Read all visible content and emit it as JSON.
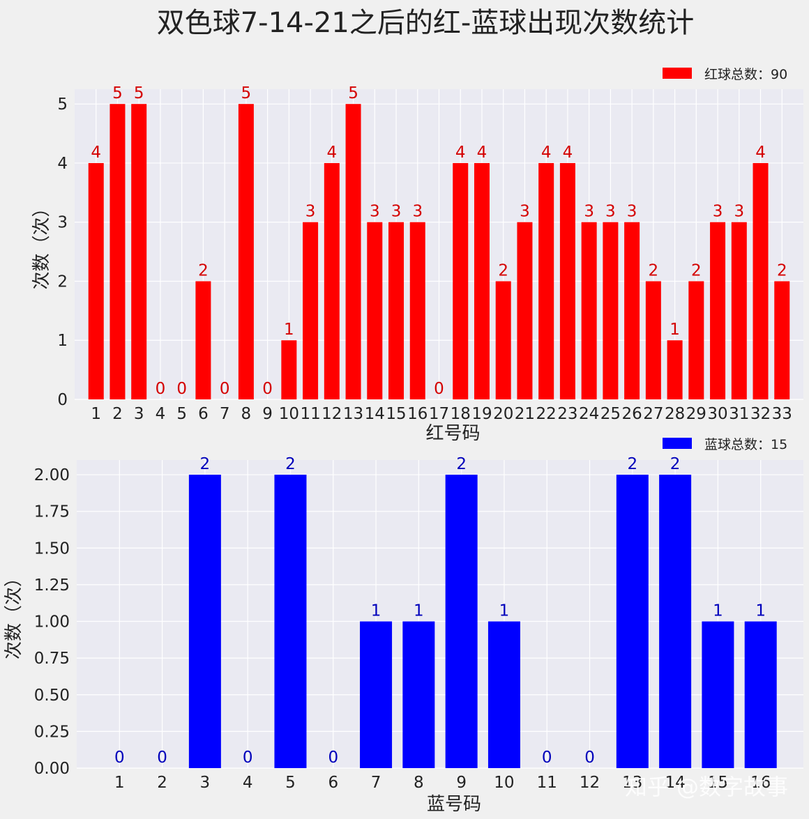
{
  "title": "双色球7-14-21之后的红-蓝球出现次数统计",
  "watermark": "知乎 @数字故事",
  "chart_data": [
    {
      "type": "bar",
      "name": "red",
      "xlabel": "红号码",
      "ylabel": "次数（次）",
      "legend": "红球总数：90",
      "legend_position": "top-right",
      "grid": true,
      "color": "#ff0000",
      "label_color": "#d40000",
      "ylim": [
        0,
        5.25
      ],
      "yticks": [
        0,
        1,
        2,
        3,
        4,
        5
      ],
      "ytick_labels": [
        "0",
        "1",
        "2",
        "3",
        "4",
        "5"
      ],
      "categories": [
        "1",
        "2",
        "3",
        "4",
        "5",
        "6",
        "7",
        "8",
        "9",
        "10",
        "11",
        "12",
        "13",
        "14",
        "15",
        "16",
        "17",
        "18",
        "19",
        "20",
        "21",
        "22",
        "23",
        "24",
        "25",
        "26",
        "27",
        "28",
        "29",
        "30",
        "31",
        "32",
        "33"
      ],
      "values": [
        4,
        5,
        5,
        0,
        0,
        2,
        0,
        5,
        0,
        1,
        3,
        4,
        5,
        3,
        3,
        3,
        0,
        4,
        4,
        2,
        3,
        4,
        4,
        3,
        3,
        3,
        2,
        1,
        2,
        3,
        3,
        4,
        2
      ],
      "data_labels": [
        "4",
        "5",
        "5",
        "0",
        "0",
        "2",
        "0",
        "5",
        "0",
        "1",
        "3",
        "4",
        "5",
        "3",
        "3",
        "3",
        "0",
        "4",
        "4",
        "2",
        "3",
        "4",
        "4",
        "3",
        "3",
        "3",
        "2",
        "1",
        "2",
        "3",
        "3",
        "4",
        "2"
      ]
    },
    {
      "type": "bar",
      "name": "blue",
      "xlabel": "蓝号码",
      "ylabel": "次数（次）",
      "legend": "蓝球总数：15",
      "legend_position": "top-right",
      "grid": true,
      "color": "#0000ff",
      "label_color": "#0000bb",
      "ylim": [
        0,
        2.1
      ],
      "yticks": [
        0,
        0.25,
        0.5,
        0.75,
        1,
        1.25,
        1.5,
        1.75,
        2
      ],
      "ytick_labels": [
        "0.00",
        "0.25",
        "0.50",
        "0.75",
        "1.00",
        "1.25",
        "1.50",
        "1.75",
        "2.00"
      ],
      "categories": [
        "1",
        "2",
        "3",
        "4",
        "5",
        "6",
        "7",
        "8",
        "9",
        "10",
        "11",
        "12",
        "13",
        "14",
        "15",
        "16"
      ],
      "values": [
        0,
        0,
        2,
        0,
        2,
        0,
        1,
        1,
        2,
        1,
        0,
        0,
        2,
        2,
        1,
        1
      ],
      "data_labels": [
        "0",
        "0",
        "2",
        "0",
        "2",
        "0",
        "1",
        "1",
        "2",
        "1",
        "0",
        "0",
        "2",
        "2",
        "1",
        "1"
      ]
    }
  ]
}
